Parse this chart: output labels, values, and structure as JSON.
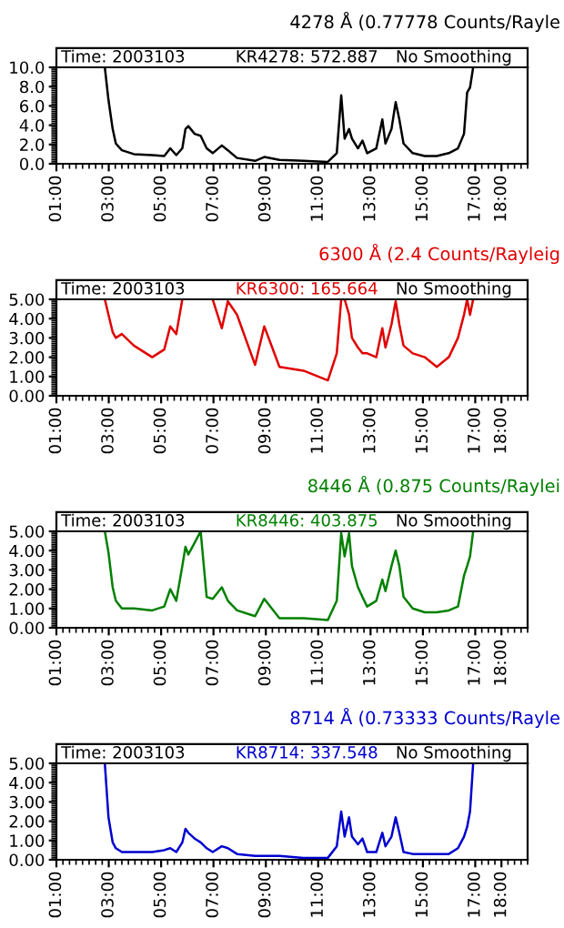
{
  "chart_data": [
    {
      "type": "line",
      "title": "4278 Å (0.77778 Counts/Rayle",
      "annotations": [
        "Time: 2003103",
        "KR4278: 572.887",
        "No Smoothing"
      ],
      "x": [
        2.85,
        2.99,
        3.15,
        3.27,
        3.5,
        3.96,
        4.66,
        5.12,
        5.35,
        5.58,
        5.81,
        5.93,
        6.04,
        6.28,
        6.51,
        6.74,
        6.97,
        7.32,
        7.55,
        7.9,
        8.59,
        8.94,
        9.52,
        10.44,
        11.37,
        11.71,
        11.88,
        12.01,
        12.18,
        12.29,
        12.52,
        12.69,
        12.87,
        13.22,
        13.45,
        13.57,
        13.8,
        13.96,
        14.1,
        14.26,
        14.61,
        15.07,
        15.53,
        15.99,
        16.34,
        16.57,
        16.69,
        16.8,
        16.92
      ],
      "series": [
        {
          "color": "#000000",
          "values": [
            10.0,
            6.6,
            3.6,
            2.1,
            1.4,
            1.0,
            0.9,
            0.8,
            1.6,
            0.9,
            1.6,
            3.6,
            3.9,
            3.1,
            2.9,
            1.6,
            1.1,
            1.9,
            1.4,
            0.6,
            0.3,
            0.7,
            0.4,
            0.3,
            0.2,
            1.1,
            7.1,
            2.6,
            3.6,
            2.6,
            1.6,
            2.4,
            1.1,
            1.6,
            4.6,
            2.1,
            3.6,
            6.4,
            4.6,
            2.1,
            1.1,
            0.8,
            0.8,
            1.1,
            1.6,
            3.1,
            7.4,
            7.9,
            10.0
          ]
        }
      ],
      "xlim": [
        1,
        19
      ],
      "xticks": [
        {
          "value": 1,
          "label": "01:00"
        },
        {
          "value": 3,
          "label": "03:00"
        },
        {
          "value": 5,
          "label": "05:00"
        },
        {
          "value": 7,
          "label": "07:00"
        },
        {
          "value": 9,
          "label": "09:00"
        },
        {
          "value": 11,
          "label": "11:00"
        },
        {
          "value": 13,
          "label": "13:00"
        },
        {
          "value": 15,
          "label": "15:00"
        },
        {
          "value": 17,
          "label": "17:00"
        },
        {
          "value": 18,
          "label": "18:00"
        }
      ],
      "ylim": [
        0,
        10
      ],
      "yticks": [
        {
          "value": 0,
          "label": "0.0"
        },
        {
          "value": 2,
          "label": "2.0"
        },
        {
          "value": 4,
          "label": "4.0"
        },
        {
          "value": 6,
          "label": "6.0"
        },
        {
          "value": 8,
          "label": "8.0"
        },
        {
          "value": 10,
          "label": "10.0"
        }
      ]
    },
    {
      "type": "line",
      "title": "6300 Å (2.4 Counts/Rayleig",
      "annotations": [
        "Time: 2003103",
        "KR6300: 165.664",
        "No Smoothing"
      ],
      "x": [
        2.85,
        2.99,
        3.15,
        3.27,
        3.5,
        3.96,
        4.66,
        5.12,
        5.35,
        5.58,
        5.81,
        5.93,
        6.04,
        6.28,
        6.51,
        6.74,
        6.97,
        7.32,
        7.55,
        7.9,
        8.59,
        8.94,
        9.52,
        10.44,
        11.37,
        11.71,
        11.88,
        12.01,
        12.18,
        12.29,
        12.52,
        12.69,
        12.87,
        13.22,
        13.45,
        13.57,
        13.8,
        13.96,
        14.1,
        14.26,
        14.61,
        15.07,
        15.53,
        15.99,
        16.34,
        16.57,
        16.69,
        16.8,
        16.92
      ],
      "series": [
        {
          "color": "#e00000",
          "values": [
            5.0,
            4.2,
            3.3,
            3.0,
            3.2,
            2.6,
            2.0,
            2.4,
            3.6,
            3.2,
            5.0,
            null,
            null,
            null,
            null,
            null,
            5.0,
            3.5,
            4.9,
            4.2,
            1.6,
            3.6,
            1.5,
            1.3,
            0.8,
            2.2,
            5.0,
            5.0,
            4.2,
            3.0,
            2.5,
            2.2,
            2.2,
            2.0,
            3.5,
            2.5,
            3.7,
            4.9,
            3.7,
            2.6,
            2.2,
            2.0,
            1.5,
            2.0,
            3.0,
            4.2,
            5.0,
            4.2,
            5.0
          ]
        }
      ],
      "xlim": [
        1,
        19
      ],
      "xticks": [
        {
          "value": 1,
          "label": "01:00"
        },
        {
          "value": 3,
          "label": "03:00"
        },
        {
          "value": 5,
          "label": "05:00"
        },
        {
          "value": 7,
          "label": "07:00"
        },
        {
          "value": 9,
          "label": "09:00"
        },
        {
          "value": 11,
          "label": "11:00"
        },
        {
          "value": 13,
          "label": "13:00"
        },
        {
          "value": 15,
          "label": "15:00"
        },
        {
          "value": 17,
          "label": "17:00"
        },
        {
          "value": 18,
          "label": "18:00"
        }
      ],
      "ylim": [
        0,
        5
      ],
      "yticks": [
        {
          "value": 0,
          "label": "0.00"
        },
        {
          "value": 1,
          "label": "1.00"
        },
        {
          "value": 2,
          "label": "2.00"
        },
        {
          "value": 3,
          "label": "3.00"
        },
        {
          "value": 4,
          "label": "4.00"
        },
        {
          "value": 5,
          "label": "5.00"
        }
      ]
    },
    {
      "type": "line",
      "title": "8446 Å (0.875 Counts/Raylei",
      "annotations": [
        "Time: 2003103",
        "KR8446: 403.875",
        "No Smoothing"
      ],
      "x": [
        2.85,
        2.99,
        3.15,
        3.27,
        3.5,
        3.96,
        4.66,
        5.12,
        5.35,
        5.58,
        5.81,
        5.93,
        6.04,
        6.28,
        6.51,
        6.74,
        6.97,
        7.32,
        7.55,
        7.9,
        8.59,
        8.94,
        9.52,
        10.44,
        11.37,
        11.71,
        11.88,
        12.01,
        12.18,
        12.29,
        12.52,
        12.69,
        12.87,
        13.22,
        13.45,
        13.57,
        13.8,
        13.96,
        14.1,
        14.26,
        14.61,
        15.07,
        15.53,
        15.99,
        16.34,
        16.57,
        16.69,
        16.8,
        16.92
      ],
      "series": [
        {
          "color": "#008000",
          "values": [
            5.0,
            3.9,
            2.1,
            1.4,
            1.0,
            1.0,
            0.9,
            1.1,
            2.0,
            1.4,
            3.2,
            4.2,
            3.8,
            4.4,
            5.0,
            1.6,
            1.5,
            2.1,
            1.4,
            0.9,
            0.6,
            1.5,
            0.5,
            0.5,
            0.4,
            1.4,
            4.9,
            3.7,
            4.9,
            3.2,
            2.1,
            1.6,
            1.1,
            1.4,
            2.5,
            1.9,
            3.2,
            4.0,
            3.2,
            1.6,
            1.0,
            0.8,
            0.8,
            0.9,
            1.1,
            2.7,
            3.2,
            3.7,
            5.0
          ]
        }
      ],
      "xlim": [
        1,
        19
      ],
      "xticks": [
        {
          "value": 1,
          "label": "01:00"
        },
        {
          "value": 3,
          "label": "03:00"
        },
        {
          "value": 5,
          "label": "05:00"
        },
        {
          "value": 7,
          "label": "07:00"
        },
        {
          "value": 9,
          "label": "09:00"
        },
        {
          "value": 11,
          "label": "11:00"
        },
        {
          "value": 13,
          "label": "13:00"
        },
        {
          "value": 15,
          "label": "15:00"
        },
        {
          "value": 17,
          "label": "17:00"
        },
        {
          "value": 18,
          "label": "18:00"
        }
      ],
      "ylim": [
        0,
        5
      ],
      "yticks": [
        {
          "value": 0,
          "label": "0.00"
        },
        {
          "value": 1,
          "label": "1.00"
        },
        {
          "value": 2,
          "label": "2.00"
        },
        {
          "value": 3,
          "label": "3.00"
        },
        {
          "value": 4,
          "label": "4.00"
        },
        {
          "value": 5,
          "label": "5.00"
        }
      ]
    },
    {
      "type": "line",
      "title": "8714 Å (0.73333 Counts/Rayle",
      "annotations": [
        "Time: 2003103",
        "KR8714: 337.548",
        "No Smoothing"
      ],
      "x": [
        2.85,
        2.99,
        3.15,
        3.27,
        3.5,
        3.96,
        4.66,
        5.12,
        5.35,
        5.58,
        5.81,
        5.93,
        6.04,
        6.28,
        6.51,
        6.74,
        6.97,
        7.32,
        7.55,
        7.9,
        8.59,
        8.94,
        9.52,
        10.44,
        11.37,
        11.71,
        11.88,
        12.01,
        12.18,
        12.29,
        12.52,
        12.69,
        12.87,
        13.22,
        13.45,
        13.57,
        13.8,
        13.96,
        14.1,
        14.26,
        14.61,
        15.07,
        15.53,
        15.99,
        16.34,
        16.57,
        16.69,
        16.8,
        16.92
      ],
      "series": [
        {
          "color": "#0000d0",
          "values": [
            5.0,
            2.2,
            0.9,
            0.6,
            0.4,
            0.4,
            0.4,
            0.5,
            0.6,
            0.4,
            0.9,
            1.6,
            1.4,
            1.1,
            0.9,
            0.6,
            0.4,
            0.7,
            0.6,
            0.3,
            0.2,
            0.2,
            0.2,
            0.1,
            0.1,
            0.7,
            2.5,
            1.2,
            2.2,
            1.2,
            0.8,
            1.1,
            0.4,
            0.4,
            1.4,
            0.7,
            1.2,
            2.2,
            1.4,
            0.4,
            0.3,
            0.3,
            0.3,
            0.3,
            0.6,
            1.2,
            1.7,
            2.5,
            5.0
          ]
        }
      ],
      "xlim": [
        1,
        19
      ],
      "xticks": [
        {
          "value": 1,
          "label": "01:00"
        },
        {
          "value": 3,
          "label": "03:00"
        },
        {
          "value": 5,
          "label": "05:00"
        },
        {
          "value": 7,
          "label": "07:00"
        },
        {
          "value": 9,
          "label": "09:00"
        },
        {
          "value": 11,
          "label": "11:00"
        },
        {
          "value": 13,
          "label": "13:00"
        },
        {
          "value": 15,
          "label": "15:00"
        },
        {
          "value": 17,
          "label": "17:00"
        },
        {
          "value": 18,
          "label": "18:00"
        }
      ],
      "ylim": [
        0,
        5
      ],
      "yticks": [
        {
          "value": 0,
          "label": "0.00"
        },
        {
          "value": 1,
          "label": "1.00"
        },
        {
          "value": 2,
          "label": "2.00"
        },
        {
          "value": 3,
          "label": "3.00"
        },
        {
          "value": 4,
          "label": "4.00"
        },
        {
          "value": 5,
          "label": "5.00"
        }
      ]
    }
  ]
}
